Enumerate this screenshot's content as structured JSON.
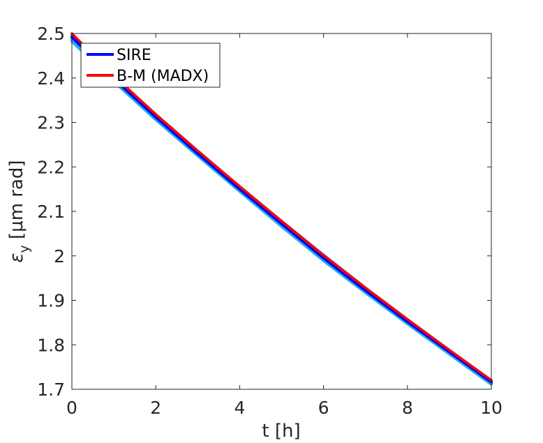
{
  "chart_data": {
    "type": "line",
    "title": "",
    "xlabel": "t [h]",
    "ylabel": "ε_y [μm rad]",
    "ylabel_parts": {
      "eps": "ε",
      "sub": "y",
      "rest": " [μm rad]"
    },
    "xlim": [
      0,
      10
    ],
    "ylim": [
      1.7,
      2.5
    ],
    "x_ticks": [
      "0",
      "2",
      "4",
      "6",
      "8",
      "10"
    ],
    "y_ticks": [
      "1.7",
      "1.8",
      "1.9",
      "2",
      "2.1",
      "2.2",
      "2.3",
      "2.4",
      "2.5"
    ],
    "grid": false,
    "legend_position": "top-left",
    "band": {
      "color": "#22aee6",
      "x": [
        0,
        1,
        2,
        3,
        4,
        5,
        6,
        7,
        8,
        9,
        10
      ],
      "lower": [
        2.482,
        2.392,
        2.306,
        2.225,
        2.145,
        2.066,
        1.989,
        1.917,
        1.847,
        1.779,
        1.711
      ],
      "upper": [
        2.498,
        2.404,
        2.318,
        2.236,
        2.156,
        2.078,
        2.002,
        1.928,
        1.857,
        1.788,
        1.72
      ]
    },
    "series": [
      {
        "name": "SIRE",
        "color": "#0000ff",
        "x": [
          0,
          1,
          2,
          3,
          4,
          5,
          6,
          7,
          8,
          9,
          10
        ],
        "values": [
          2.492,
          2.398,
          2.312,
          2.23,
          2.15,
          2.072,
          1.995,
          1.922,
          1.852,
          1.784,
          1.716
        ]
      },
      {
        "name": "B-M (MADX)",
        "color": "#ff0000",
        "x": [
          0,
          1,
          2,
          3,
          4,
          5,
          6,
          7,
          8,
          9,
          10
        ],
        "values": [
          2.5,
          2.405,
          2.318,
          2.236,
          2.156,
          2.078,
          2.001,
          1.928,
          1.857,
          1.788,
          1.72
        ]
      }
    ]
  }
}
